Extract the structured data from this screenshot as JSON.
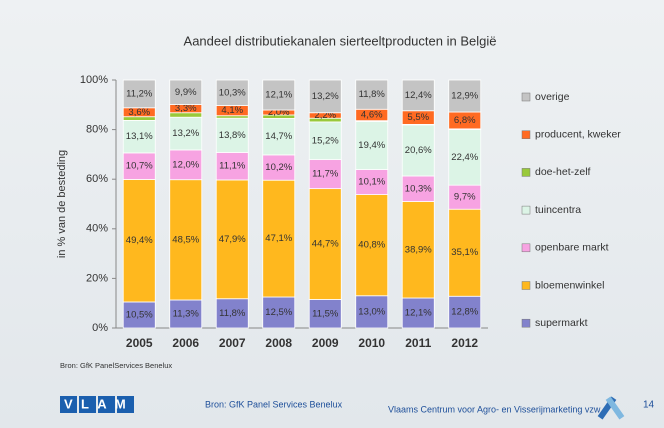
{
  "chart_data": {
    "type": "stacked_bar",
    "title": "Aandeel distributiekanalen sierteeltproducten in België",
    "y_label": "in % van de besteding",
    "categories": [
      "2005",
      "2006",
      "2007",
      "2008",
      "2009",
      "2010",
      "2011",
      "2012"
    ],
    "series": [
      {
        "name": "supermarkt",
        "color": "#8282cc",
        "values": [
          10.5,
          11.3,
          11.8,
          12.5,
          11.5,
          13.0,
          12.1,
          12.8
        ],
        "value_labels": [
          "10,5%",
          "11,3%",
          "11,8%",
          "12,5%",
          "11,5%",
          "13,0%",
          "12,1%",
          "12,8%"
        ]
      },
      {
        "name": "bloemenwinkel",
        "color": "#ffb81e",
        "values": [
          49.4,
          48.5,
          47.9,
          47.1,
          44.7,
          40.8,
          38.9,
          35.1
        ],
        "value_labels": [
          "49,4%",
          "48,5%",
          "47,9%",
          "47,1%",
          "44,7%",
          "40,8%",
          "38,9%",
          "35,1%"
        ]
      },
      {
        "name": "openbare markt",
        "color": "#f7a3e2",
        "values": [
          10.7,
          12.0,
          11.1,
          10.2,
          11.7,
          10.1,
          10.3,
          9.7
        ],
        "value_labels": [
          "10,7%",
          "12,0%",
          "11,1%",
          "10,2%",
          "11,7%",
          "10,1%",
          "10,3%",
          "9,7%"
        ]
      },
      {
        "name": "tuincentra",
        "color": "#dcf4e6",
        "values": [
          13.1,
          13.2,
          13.8,
          14.7,
          15.2,
          19.4,
          20.6,
          22.4
        ],
        "value_labels": [
          "13,1%",
          "13,2%",
          "13,8%",
          "14,7%",
          "15,2%",
          "19,4%",
          "20,6%",
          "22,4%"
        ]
      },
      {
        "name": "doe-het-zelf",
        "color": "#99c93a",
        "values": [
          1.5,
          1.8,
          1.0,
          1.4,
          1.5,
          0.3,
          0.2,
          0.3
        ]
      },
      {
        "name": "producent, kweker",
        "color": "#ff6a22",
        "values": [
          3.6,
          3.3,
          4.1,
          2.0,
          2.2,
          4.6,
          5.5,
          6.8
        ],
        "value_labels": [
          "3,6%",
          "3,3%",
          "4,1%",
          "2,0%",
          "2,2%",
          "4,6%",
          "5,5%",
          "6,8%"
        ]
      },
      {
        "name": "overige",
        "color": "#c4c4c4",
        "values": [
          11.2,
          9.9,
          10.3,
          12.1,
          13.2,
          11.8,
          12.4,
          12.9
        ],
        "value_labels": [
          "11,2%",
          "9,9%",
          "10,3%",
          "12,1%",
          "13,2%",
          "11,8%",
          "12,4%",
          "12,9%"
        ]
      }
    ],
    "ylim": [
      0,
      100
    ],
    "yticks": [
      {
        "value": 0,
        "label": "0%"
      },
      {
        "value": 20,
        "label": "20%"
      },
      {
        "value": 40,
        "label": "40%"
      },
      {
        "value": 60,
        "label": "60%"
      },
      {
        "value": 80,
        "label": "80%"
      },
      {
        "value": 100,
        "label": "100%"
      }
    ],
    "legend": "right"
  },
  "source": "Bron: GfK PanelServices Benelux",
  "footer": {
    "logo": "VLAM",
    "source": "Bron: GfK Panel Services Benelux",
    "organization": "Vlaams Centrum voor Agro- en Visserijmarketing vzw",
    "page": "14"
  }
}
